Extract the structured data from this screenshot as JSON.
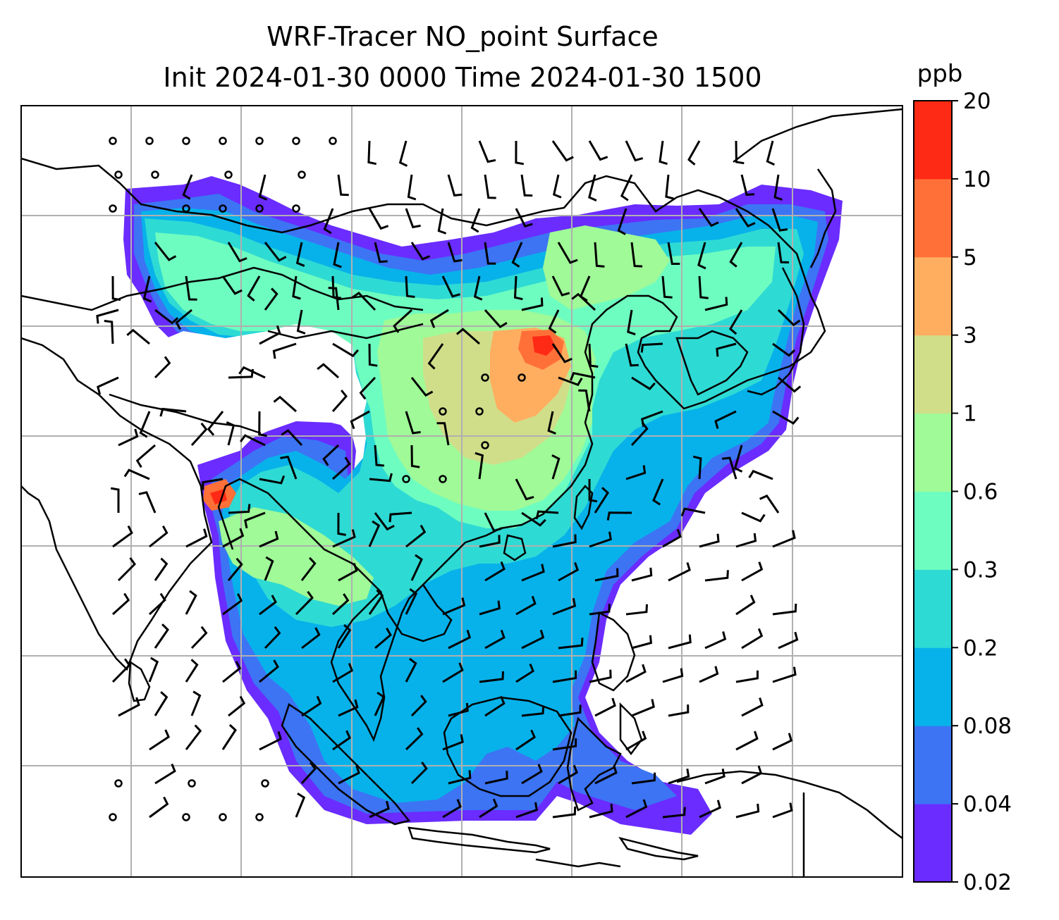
{
  "title": {
    "line1": "WRF-Tracer NO_point Surface",
    "line2": "Init 2024-01-30 0000 Time 2024-01-30 1500"
  },
  "colorbar": {
    "unit": "ppb",
    "levels": [
      "0.02",
      "0.04",
      "0.08",
      "0.2",
      "0.3",
      "0.6",
      "1",
      "3",
      "5",
      "10",
      "20"
    ],
    "colors": [
      "#6a2cff",
      "#3c74f4",
      "#07b2ea",
      "#2edad4",
      "#6efdc0",
      "#9ffa97",
      "#d0de8a",
      "#ffae60",
      "#ff7038",
      "#ff2a15"
    ]
  },
  "map": {
    "gridlines": true,
    "coastline_color": "#000000",
    "grid_color": "#b0b0b0"
  }
}
